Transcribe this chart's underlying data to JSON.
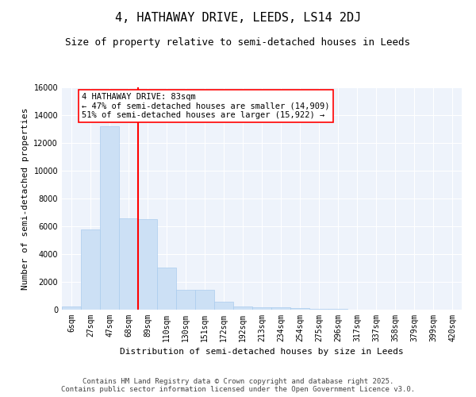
{
  "title": "4, HATHAWAY DRIVE, LEEDS, LS14 2DJ",
  "subtitle": "Size of property relative to semi-detached houses in Leeds",
  "xlabel": "Distribution of semi-detached houses by size in Leeds",
  "ylabel": "Number of semi-detached properties",
  "categories": [
    "6sqm",
    "27sqm",
    "47sqm",
    "68sqm",
    "89sqm",
    "110sqm",
    "130sqm",
    "151sqm",
    "172sqm",
    "192sqm",
    "213sqm",
    "234sqm",
    "254sqm",
    "275sqm",
    "296sqm",
    "317sqm",
    "337sqm",
    "358sqm",
    "379sqm",
    "399sqm",
    "420sqm"
  ],
  "bar_values": [
    250,
    5800,
    13200,
    6600,
    6500,
    3050,
    1450,
    1450,
    600,
    250,
    200,
    180,
    100,
    80,
    60,
    20,
    10,
    5,
    3,
    2,
    1
  ],
  "bar_color": "#cce0f5",
  "bar_edge_color": "#aaccee",
  "annotation_line1": "4 HATHAWAY DRIVE: 83sqm",
  "annotation_line2": "← 47% of semi-detached houses are smaller (14,909)",
  "annotation_line3": "51% of semi-detached houses are larger (15,922) →",
  "vline_x": 3.5,
  "vline_color": "red",
  "ylim": [
    0,
    16000
  ],
  "yticks": [
    0,
    2000,
    4000,
    6000,
    8000,
    10000,
    12000,
    14000,
    16000
  ],
  "background_color": "#eef3fb",
  "footer_line1": "Contains HM Land Registry data © Crown copyright and database right 2025.",
  "footer_line2": "Contains public sector information licensed under the Open Government Licence v3.0.",
  "title_fontsize": 11,
  "subtitle_fontsize": 9,
  "annotation_fontsize": 7.5,
  "ylabel_fontsize": 8,
  "xlabel_fontsize": 8,
  "footer_fontsize": 6.5,
  "tick_fontsize": 7
}
